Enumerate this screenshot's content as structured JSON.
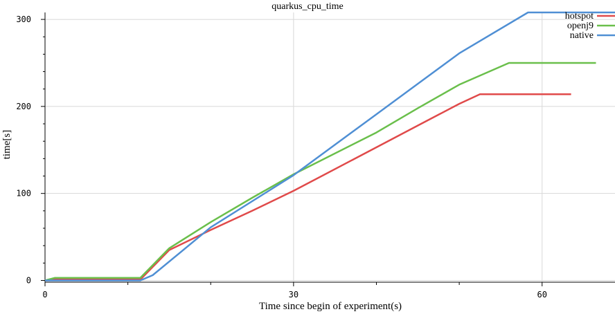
{
  "chart_data": {
    "type": "line",
    "title": "quarkus_cpu_time",
    "xlabel": "Time since begin of experiment(s)",
    "ylabel": "time[s]",
    "xlim": [
      0,
      68.8
    ],
    "ylim": [
      -2,
      308
    ],
    "x_ticks": [
      0,
      30,
      60
    ],
    "x_tick_labels": [
      "0",
      "30",
      "60"
    ],
    "y_ticks": [
      0,
      100,
      200,
      300
    ],
    "y_tick_labels": [
      "0",
      "100",
      "200",
      "300"
    ],
    "x_minor_ticks": [
      10,
      20,
      40,
      50
    ],
    "y_minor_ticks": [
      20,
      40,
      60,
      80,
      120,
      140,
      160,
      180,
      220,
      240,
      260,
      280
    ],
    "grid": true,
    "legend": "top-right",
    "series": [
      {
        "name": "hotspot",
        "color": "#e04a4a",
        "points": [
          [
            0,
            0
          ],
          [
            1,
            1
          ],
          [
            11.5,
            1
          ],
          [
            15,
            35
          ],
          [
            20,
            58
          ],
          [
            25,
            80
          ],
          [
            30,
            103
          ],
          [
            40,
            153
          ],
          [
            45,
            178
          ],
          [
            50,
            203
          ],
          [
            52.5,
            214
          ],
          [
            63.5,
            214
          ]
        ]
      },
      {
        "name": "openj9",
        "color": "#6abf4b",
        "points": [
          [
            0,
            0
          ],
          [
            1.2,
            3
          ],
          [
            11.5,
            3
          ],
          [
            15,
            37
          ],
          [
            20,
            67
          ],
          [
            25,
            95
          ],
          [
            30,
            122
          ],
          [
            40,
            170
          ],
          [
            45,
            198
          ],
          [
            50,
            225
          ],
          [
            56,
            250
          ],
          [
            66.5,
            250
          ]
        ]
      },
      {
        "name": "native",
        "color": "#4f8fd4",
        "points": [
          [
            0,
            0
          ],
          [
            11.5,
            0
          ],
          [
            13,
            6
          ],
          [
            20,
            61
          ],
          [
            30,
            121
          ],
          [
            40,
            191
          ],
          [
            50,
            261
          ],
          [
            58.3,
            308
          ],
          [
            68.8,
            308
          ]
        ]
      }
    ]
  }
}
